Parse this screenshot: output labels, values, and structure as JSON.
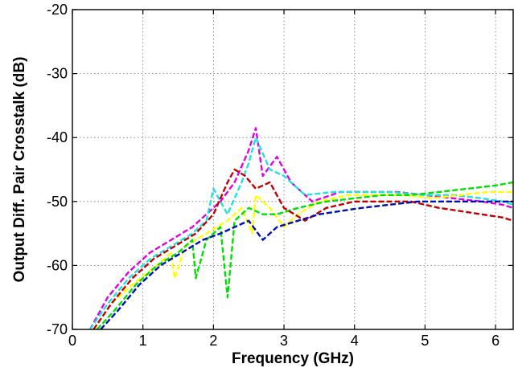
{
  "chart_data": {
    "type": "line",
    "title": "",
    "xlabel": "Frequency (GHz)",
    "ylabel": "Output Diff. Pair Crosstalk (dB)",
    "xlim": [
      0,
      6.25
    ],
    "ylim": [
      -70,
      -20
    ],
    "xticks": [
      0,
      1,
      2,
      3,
      4,
      5,
      6
    ],
    "yticks": [
      -70,
      -60,
      -50,
      -40,
      -30,
      -20
    ],
    "xtick_labels": [
      "0",
      "1",
      "2",
      "3",
      "4",
      "5",
      "6"
    ],
    "ytick_labels": [
      "-70",
      "-60",
      "-50",
      "-40",
      "-30",
      "-20"
    ],
    "grid": true,
    "legend": "none",
    "series": [
      {
        "color": "#e000e0",
        "x": [
          0.25,
          0.5,
          0.8,
          1.1,
          1.4,
          1.7,
          1.9,
          2.1,
          2.3,
          2.5,
          2.6,
          2.7,
          2.9,
          3.1,
          3.4,
          3.8,
          4.2,
          4.6,
          5.0,
          5.4,
          5.8,
          6.1,
          6.25
        ],
        "y": [
          -70,
          -65,
          -61,
          -58,
          -56,
          -54,
          -52,
          -50,
          -47,
          -42,
          -38.5,
          -46,
          -43,
          -47,
          -50,
          -48.5,
          -48.5,
          -48.5,
          -49,
          -49.5,
          -50,
          -50.5,
          -51
        ]
      },
      {
        "color": "#20e0e0",
        "x": [
          0.25,
          0.5,
          0.8,
          1.1,
          1.4,
          1.7,
          1.9,
          2.0,
          2.2,
          2.4,
          2.5,
          2.6,
          2.8,
          3.0,
          3.3,
          3.7,
          4.1,
          4.5,
          5.0,
          5.4,
          5.8,
          6.1,
          6.25
        ],
        "y": [
          -70,
          -66,
          -62,
          -59,
          -57,
          -55,
          -53,
          -48,
          -52,
          -47,
          -44,
          -40,
          -45,
          -46,
          -49,
          -48.5,
          -48.5,
          -48.5,
          -49,
          -49,
          -49.5,
          -50,
          -50.5
        ]
      },
      {
        "color": "#ffff00",
        "x": [
          0.3,
          0.55,
          0.85,
          1.2,
          1.4,
          1.45,
          1.6,
          1.9,
          2.2,
          2.4,
          2.55,
          2.6,
          2.8,
          3.0,
          3.2,
          3.5,
          3.9,
          4.3,
          4.7,
          5.1,
          5.5,
          5.9,
          6.25
        ],
        "y": [
          -70,
          -66,
          -63,
          -60,
          -58,
          -62,
          -57,
          -55,
          -53,
          -51,
          -55,
          -49,
          -51,
          -54,
          -52,
          -50,
          -49,
          -49,
          -49,
          -49.5,
          -49,
          -48.5,
          -48.5
        ]
      },
      {
        "color": "#00e000",
        "x": [
          0.35,
          0.6,
          0.9,
          1.2,
          1.5,
          1.7,
          1.75,
          1.9,
          2.1,
          2.2,
          2.3,
          2.5,
          2.7,
          2.9,
          3.2,
          3.6,
          4.0,
          4.4,
          4.8,
          5.2,
          5.6,
          6.0,
          6.25
        ],
        "y": [
          -70,
          -67,
          -63,
          -60,
          -58,
          -56,
          -62,
          -56,
          -54,
          -65,
          -53,
          -51,
          -52,
          -52,
          -51,
          -50,
          -49.5,
          -49,
          -49,
          -48.5,
          -48,
          -47.5,
          -47
        ]
      },
      {
        "color": "#c00000",
        "x": [
          0.3,
          0.55,
          0.85,
          1.15,
          1.45,
          1.75,
          2.0,
          2.2,
          2.3,
          2.45,
          2.6,
          2.8,
          3.0,
          3.3,
          3.6,
          4.0,
          4.4,
          4.8,
          5.2,
          5.5,
          5.8,
          6.1,
          6.25
        ],
        "y": [
          -70,
          -66,
          -62,
          -59,
          -57,
          -55,
          -52,
          -47,
          -45,
          -46,
          -48,
          -47,
          -51,
          -53,
          -51,
          -50,
          -50,
          -50,
          -51,
          -51.5,
          -52,
          -52.5,
          -53
        ]
      },
      {
        "color": "#0010b0",
        "x": [
          0.4,
          0.65,
          0.95,
          1.25,
          1.55,
          1.85,
          2.1,
          2.3,
          2.5,
          2.7,
          2.9,
          3.2,
          3.5,
          3.8,
          4.1,
          4.5,
          4.9,
          5.3,
          5.7,
          6.0,
          6.25
        ],
        "y": [
          -70,
          -67,
          -63,
          -60,
          -58,
          -56,
          -55,
          -54,
          -53,
          -56,
          -54,
          -53,
          -52,
          -51.5,
          -51,
          -50.5,
          -50,
          -50,
          -50,
          -50,
          -50
        ]
      }
    ]
  }
}
